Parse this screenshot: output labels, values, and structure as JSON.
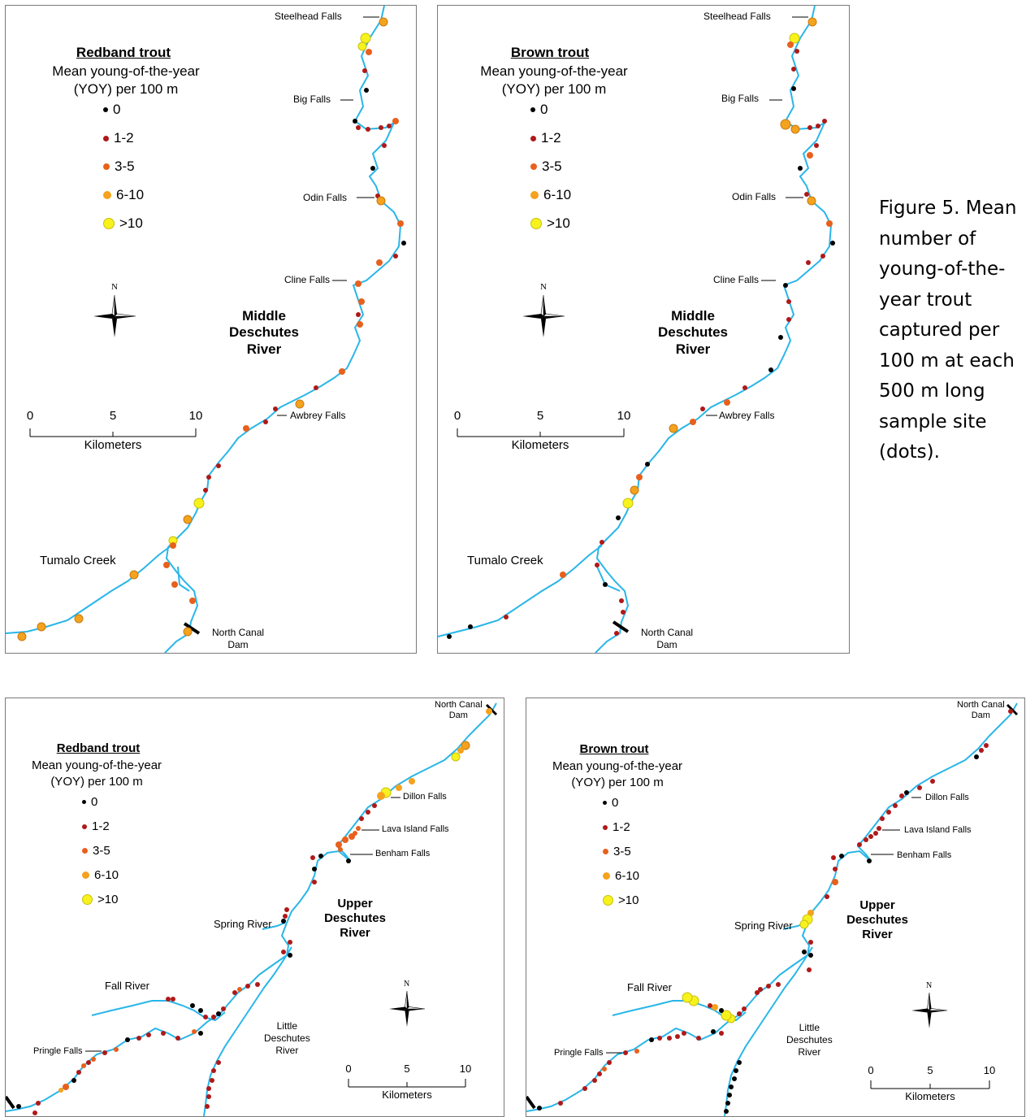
{
  "caption": "Figure 5. Mean number of young-of-the-year trout captured per 100 m at each 500 m long sample site (dots).",
  "legend_classes": [
    "0",
    "1-2",
    "3-5",
    "6-10",
    ">10"
  ],
  "legend_colors": [
    "#000000",
    "#b01818",
    "#e8601c",
    "#f5a21e",
    "#f7f21c"
  ],
  "legend_subtitle_line1": "Mean young-of-the-year",
  "legend_subtitle_line2": "(YOY) per 100 m",
  "scale": {
    "ticks": [
      "0",
      "5",
      "10"
    ],
    "unit": "Kilometers"
  },
  "river_color": "#29b6e8",
  "compass_label": "N",
  "maps": [
    {
      "legend_title": "Redband trout",
      "river_name": [
        "Middle",
        "Deschutes",
        "River"
      ],
      "places": [
        "Steelhead Falls",
        "Big Falls",
        "Odin Falls",
        "Cline Falls",
        "Awbrey Falls",
        "Tumalo Creek",
        "North Canal",
        "Dam"
      ]
    },
    {
      "legend_title": "Brown trout",
      "river_name": [
        "Middle",
        "Deschutes",
        "River"
      ],
      "places": [
        "Steelhead Falls",
        "Big Falls",
        "Odin Falls",
        "Cline Falls",
        "Awbrey Falls",
        "Tumalo Creek",
        "North Canal",
        "Dam"
      ]
    },
    {
      "legend_title": "Redband trout",
      "river_name": [
        "Upper",
        "Deschutes",
        "River"
      ],
      "places": [
        "North Canal",
        "Dam",
        "Dillon Falls",
        "Lava Island Falls",
        "Benham Falls",
        "Spring River",
        "Fall River",
        "Pringle Falls",
        "Little",
        "Deschutes",
        "River"
      ]
    },
    {
      "legend_title": "Brown trout",
      "river_name": [
        "Upper",
        "Deschutes",
        "River"
      ],
      "places": [
        "North Canal",
        "Dam",
        "Dillon Falls",
        "Lava Island Falls",
        "Benham Falls",
        "Spring River",
        "Fall River",
        "Pringle Falls",
        "Little",
        "Deschutes",
        "River"
      ]
    }
  ]
}
